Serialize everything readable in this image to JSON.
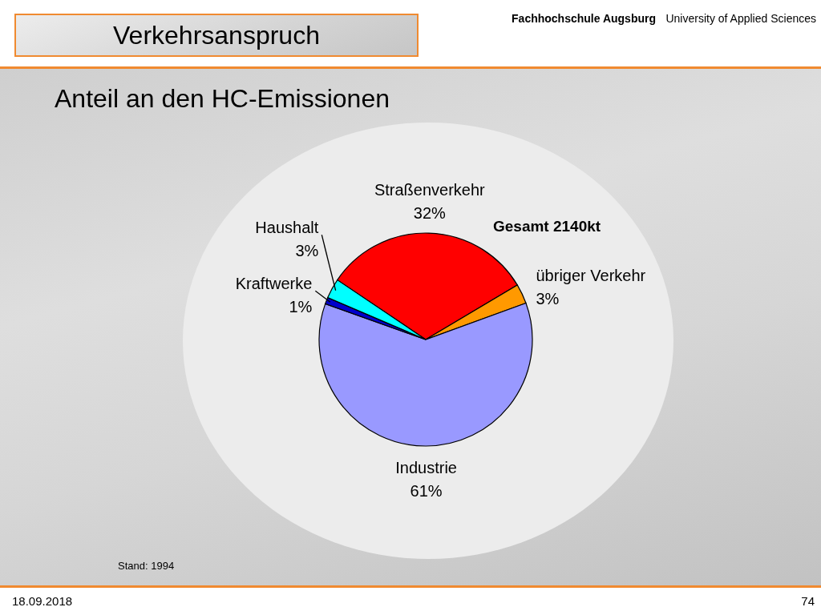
{
  "chart_data": {
    "type": "pie",
    "title": "Verkehrsanspruch",
    "subtitle": "Anteil an den HC-Emissionen",
    "categories": [
      "Straßenverkehr",
      "übriger Verkehr",
      "Industrie",
      "Kraftwerke",
      "Haushalt"
    ],
    "values": [
      32,
      3,
      61,
      1,
      3
    ],
    "value_labels": [
      "32%",
      "3%",
      "61%",
      "1%",
      "3%"
    ],
    "colors": [
      "#ff0000",
      "#ff9900",
      "#9999ff",
      "#0000cc",
      "#00ffff"
    ],
    "annotations": [
      "Gesamt 2140kt",
      "Stand: 1994",
      "18.09.2018",
      "74",
      "Fachhochschule Augsburg",
      "University of Applied Sciences"
    ]
  }
}
